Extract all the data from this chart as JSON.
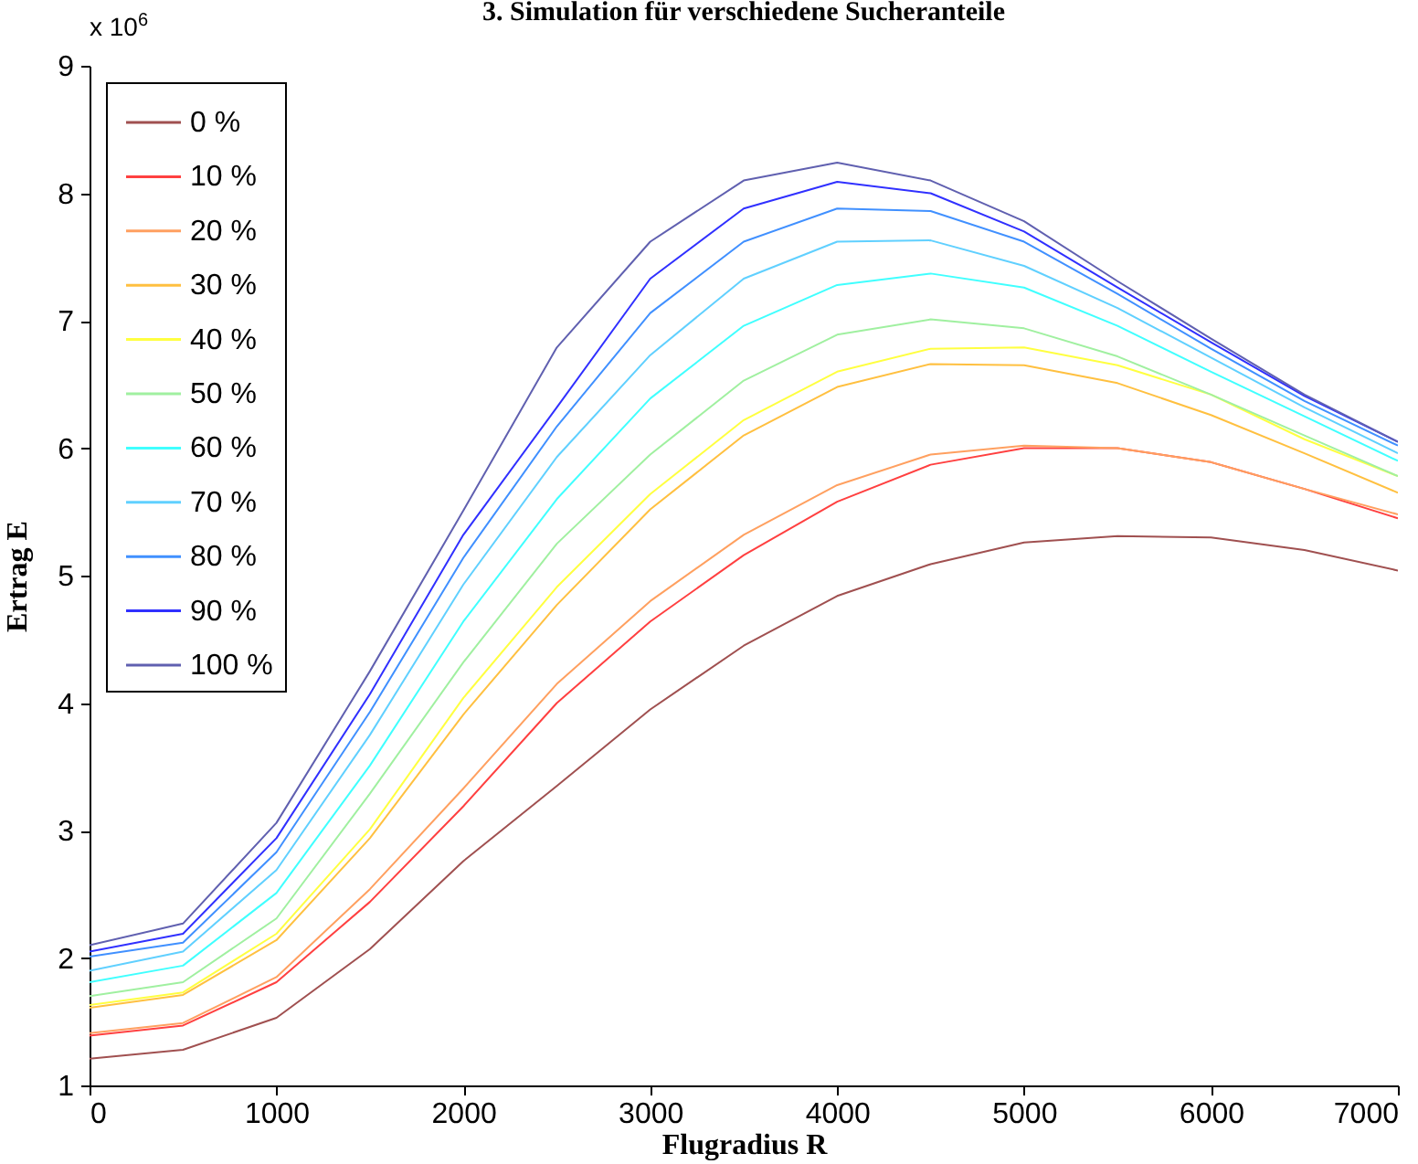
{
  "chart_data": {
    "type": "line",
    "title": "3. Simulation für verschiedene Sucheranteile",
    "xlabel": "Flugradius R",
    "ylabel": "Ertrag E",
    "annotations": [
      "x 10$^{6}$"
    ],
    "x": [
      0,
      500,
      1000,
      1500,
      2000,
      2500,
      3000,
      3500,
      4000,
      4500,
      5000,
      5500,
      6000,
      6500,
      7000
    ],
    "xlim": [
      0,
      7000
    ],
    "xticks": [
      0,
      1000,
      2000,
      3000,
      4000,
      5000,
      6000,
      7000
    ],
    "ylim": [
      1,
      9
    ],
    "yticks": [
      1,
      2,
      3,
      4,
      5,
      6,
      7,
      8,
      9
    ],
    "legend": "top left",
    "series": [
      {
        "name": "0 %",
        "color": "#a05050",
        "values": [
          1.21,
          1.28,
          1.53,
          2.07,
          2.76,
          3.35,
          3.95,
          4.45,
          4.84,
          5.09,
          5.26,
          5.31,
          5.3,
          5.2,
          5.04
        ]
      },
      {
        "name": "10 %",
        "color": "#ff4040",
        "values": [
          1.39,
          1.47,
          1.81,
          2.44,
          3.19,
          4.0,
          4.64,
          5.16,
          5.58,
          5.87,
          6.0,
          6.0,
          5.89,
          5.68,
          5.45
        ]
      },
      {
        "name": "20 %",
        "color": "#ffa060",
        "values": [
          1.41,
          1.49,
          1.85,
          2.54,
          3.33,
          4.15,
          4.8,
          5.32,
          5.71,
          5.95,
          6.02,
          6.0,
          5.89,
          5.68,
          5.48
        ]
      },
      {
        "name": "30 %",
        "color": "#ffc040",
        "values": [
          1.61,
          1.71,
          2.14,
          2.94,
          3.91,
          4.77,
          5.52,
          6.1,
          6.48,
          6.66,
          6.65,
          6.51,
          6.26,
          5.96,
          5.65
        ]
      },
      {
        "name": "40 %",
        "color": "#ffff40",
        "values": [
          1.63,
          1.73,
          2.19,
          3.01,
          4.04,
          4.91,
          5.64,
          6.22,
          6.6,
          6.78,
          6.79,
          6.65,
          6.42,
          6.07,
          5.78
        ]
      },
      {
        "name": "50 %",
        "color": "#a0f0a0",
        "values": [
          1.7,
          1.81,
          2.31,
          3.29,
          4.32,
          5.25,
          5.95,
          6.53,
          6.89,
          7.01,
          6.94,
          6.72,
          6.42,
          6.1,
          5.78
        ]
      },
      {
        "name": "60 %",
        "color": "#40ffff",
        "values": [
          1.81,
          1.94,
          2.51,
          3.51,
          4.64,
          5.6,
          6.39,
          6.96,
          7.28,
          7.37,
          7.26,
          6.96,
          6.6,
          6.25,
          5.9
        ]
      },
      {
        "name": "70 %",
        "color": "#60d0ff",
        "values": [
          1.9,
          2.05,
          2.69,
          3.75,
          4.93,
          5.93,
          6.73,
          7.33,
          7.62,
          7.63,
          7.43,
          7.1,
          6.71,
          6.32,
          5.96
        ]
      },
      {
        "name": "80 %",
        "color": "#4090ff",
        "values": [
          2.01,
          2.12,
          2.83,
          3.93,
          5.14,
          6.17,
          7.06,
          7.62,
          7.88,
          7.86,
          7.62,
          7.21,
          6.78,
          6.37,
          6.02
        ]
      },
      {
        "name": "90 %",
        "color": "#3030ff",
        "values": [
          2.05,
          2.19,
          2.94,
          4.07,
          5.32,
          6.32,
          7.33,
          7.88,
          8.09,
          8.0,
          7.7,
          7.26,
          6.83,
          6.41,
          6.05
        ]
      },
      {
        "name": "100 %",
        "color": "#6060b0",
        "values": [
          2.1,
          2.27,
          3.06,
          4.25,
          5.51,
          6.79,
          7.62,
          8.1,
          8.24,
          8.1,
          7.78,
          7.31,
          6.86,
          6.42,
          6.05
        ]
      }
    ]
  }
}
